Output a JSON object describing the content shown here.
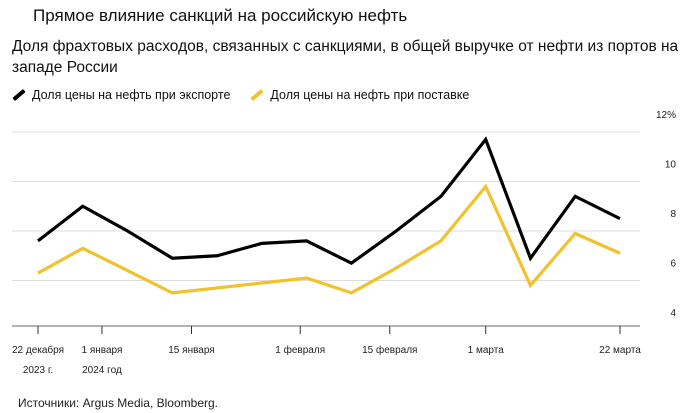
{
  "title": "Прямое влияние санкций на российскую нефть",
  "subtitle": "Доля фрахтовых расходов, связанных с санкциями, в общей выручке от нефти из портов на западе России",
  "source": "Источники: Argus Media, Bloomberg.",
  "chart_data": {
    "type": "line",
    "title": "Доля фрахтовых расходов, связанных с санкциями, в общей выручке от нефти из портов на западе России",
    "x": [
      "2023-12-22",
      "2023-12-29",
      "2024-01-05",
      "2024-01-12",
      "2024-01-19",
      "2024-01-26",
      "2024-02-02",
      "2024-02-09",
      "2024-02-16",
      "2024-02-23",
      "2024-03-01",
      "2024-03-08",
      "2024-03-15",
      "2024-03-22"
    ],
    "series": [
      {
        "name": "Доля цены на нефть при экспорте",
        "color": "#000000",
        "values": [
          7.6,
          9.0,
          8.0,
          6.9,
          7.0,
          7.5,
          7.6,
          6.7,
          8.0,
          9.4,
          11.7,
          6.9,
          9.4,
          8.5
        ]
      },
      {
        "name": "Доля цены на нефть при поставке",
        "color": "#f2c12e",
        "values": [
          6.3,
          7.3,
          6.4,
          5.5,
          5.7,
          5.9,
          6.1,
          5.5,
          6.5,
          7.6,
          9.8,
          5.8,
          7.9,
          7.1
        ]
      }
    ],
    "ylim": [
      4,
      12
    ],
    "yticks": [
      {
        "value": 12,
        "label": "12%"
      },
      {
        "value": 10,
        "label": "10"
      },
      {
        "value": 8,
        "label": "8"
      },
      {
        "value": 6,
        "label": "6"
      },
      {
        "value": 4,
        "label": "4"
      }
    ],
    "xticks": [
      {
        "date": "2023-12-22",
        "label": "22 декабря",
        "sublabel": "2023 г."
      },
      {
        "date": "2024-01-01",
        "label": "1 января",
        "sublabel": "2024 год"
      },
      {
        "date": "2024-01-15",
        "label": "15 января",
        "sublabel": ""
      },
      {
        "date": "2024-02-01",
        "label": "1 февраля",
        "sublabel": ""
      },
      {
        "date": "2024-02-15",
        "label": "15 февраля",
        "sublabel": ""
      },
      {
        "date": "2024-03-01",
        "label": "1 марта",
        "sublabel": ""
      },
      {
        "date": "2024-03-22",
        "label": "22 марта",
        "sublabel": ""
      }
    ],
    "grid": true,
    "legend": "top-left"
  }
}
